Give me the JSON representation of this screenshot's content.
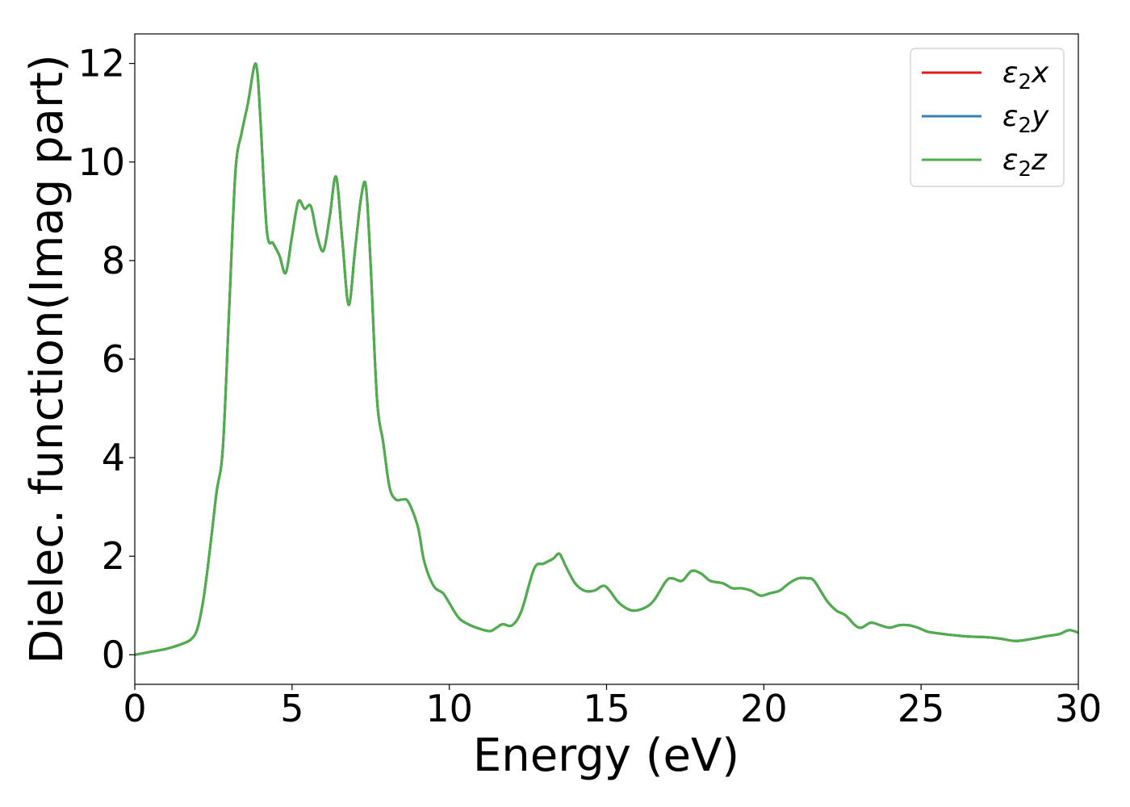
{
  "chart_data": {
    "type": "line",
    "title": "",
    "xlabel": "Energy (eV)",
    "ylabel": "Dielec. function(Imag part)",
    "xlim": [
      0,
      30
    ],
    "ylim": [
      -0.6,
      12.6
    ],
    "xticks": [
      0,
      5,
      10,
      15,
      20,
      25,
      30
    ],
    "xtick_labels": [
      "0",
      "5",
      "10",
      "15",
      "20",
      "25",
      "30"
    ],
    "yticks": [
      0,
      2,
      4,
      6,
      8,
      10,
      12
    ],
    "ytick_labels": [
      "0",
      "2",
      "4",
      "6",
      "8",
      "10",
      "12"
    ],
    "grid": false,
    "legend": "top-right",
    "series": [
      {
        "name": "ε₂x",
        "legend_base": "ε",
        "legend_sub": "2",
        "legend_suffix": "x",
        "color": "#e41a1c"
      },
      {
        "name": "ε₂y",
        "legend_base": "ε",
        "legend_sub": "2",
        "legend_suffix": "y",
        "color": "#377eb8"
      },
      {
        "name": "ε₂z",
        "legend_base": "ε",
        "legend_sub": "2",
        "legend_suffix": "z",
        "color": "#4daf4a"
      }
    ],
    "x": [
      0,
      0.5,
      1.0,
      1.5,
      1.8,
      2.0,
      2.2,
      2.4,
      2.6,
      2.8,
      3.0,
      3.2,
      3.4,
      3.6,
      3.8,
      3.9,
      4.0,
      4.2,
      4.4,
      4.6,
      4.8,
      5.0,
      5.2,
      5.4,
      5.6,
      5.8,
      6.0,
      6.2,
      6.4,
      6.6,
      6.8,
      7.0,
      7.2,
      7.35,
      7.5,
      7.7,
      7.9,
      8.1,
      8.3,
      8.5,
      8.7,
      9.0,
      9.2,
      9.5,
      9.8,
      10.0,
      10.3,
      10.6,
      11.0,
      11.3,
      11.5,
      11.7,
      12.0,
      12.3,
      12.7,
      13.0,
      13.3,
      13.5,
      13.7,
      14.0,
      14.3,
      14.6,
      14.9,
      15.1,
      15.4,
      15.8,
      16.2,
      16.5,
      16.9,
      17.1,
      17.4,
      17.7,
      18.0,
      18.3,
      18.7,
      19.0,
      19.3,
      19.6,
      19.9,
      20.2,
      20.5,
      20.8,
      21.1,
      21.4,
      21.6,
      22.0,
      22.3,
      22.6,
      22.9,
      23.1,
      23.4,
      23.7,
      24.0,
      24.3,
      24.6,
      24.9,
      25.2,
      25.6,
      26.0,
      26.5,
      27.0,
      27.5,
      28.0,
      28.5,
      29.0,
      29.4,
      29.7,
      30.0
    ],
    "y": [
      0.0,
      0.06,
      0.12,
      0.22,
      0.32,
      0.55,
      1.2,
      2.2,
      3.3,
      4.2,
      7.0,
      9.8,
      10.6,
      11.2,
      11.95,
      11.8,
      10.8,
      8.6,
      8.35,
      8.1,
      7.75,
      8.5,
      9.2,
      9.05,
      9.1,
      8.5,
      8.2,
      8.9,
      9.7,
      8.4,
      7.1,
      8.2,
      9.3,
      9.5,
      7.9,
      5.2,
      4.3,
      3.4,
      3.15,
      3.15,
      3.1,
      2.6,
      1.9,
      1.4,
      1.25,
      1.05,
      0.75,
      0.62,
      0.52,
      0.48,
      0.55,
      0.62,
      0.6,
      0.9,
      1.75,
      1.85,
      1.95,
      2.05,
      1.8,
      1.45,
      1.3,
      1.3,
      1.4,
      1.3,
      1.05,
      0.9,
      0.95,
      1.1,
      1.5,
      1.55,
      1.5,
      1.7,
      1.65,
      1.5,
      1.45,
      1.35,
      1.35,
      1.3,
      1.2,
      1.25,
      1.3,
      1.45,
      1.55,
      1.55,
      1.5,
      1.1,
      0.9,
      0.8,
      0.6,
      0.55,
      0.65,
      0.6,
      0.55,
      0.6,
      0.6,
      0.55,
      0.47,
      0.43,
      0.4,
      0.37,
      0.36,
      0.33,
      0.28,
      0.32,
      0.38,
      0.42,
      0.5,
      0.45
    ]
  }
}
